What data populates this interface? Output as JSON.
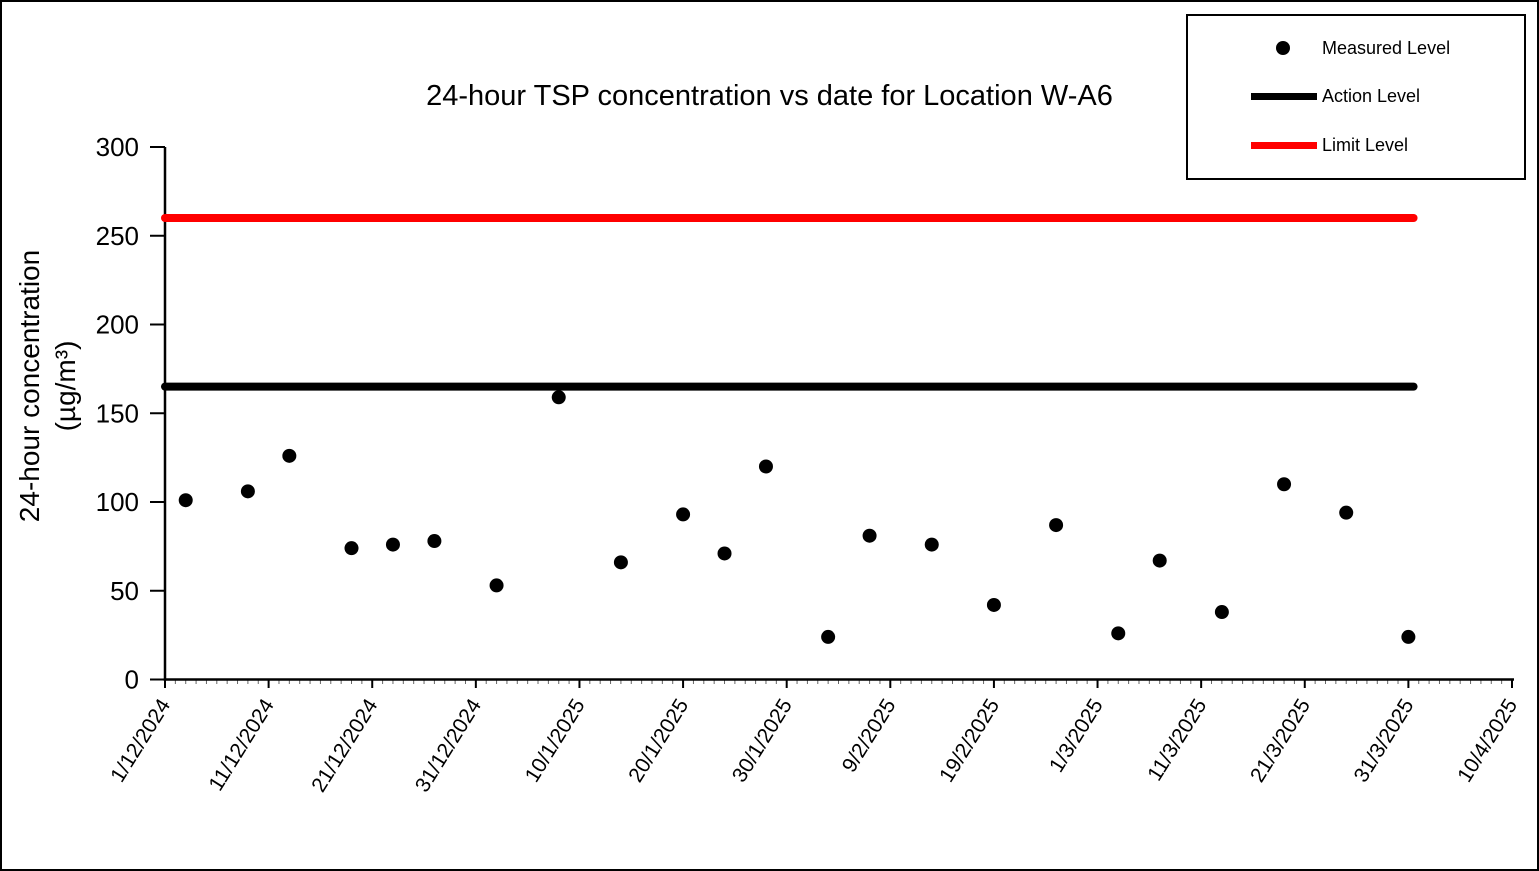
{
  "figure": {
    "title": "24-hour TSP concentration vs date for Location W-A6"
  },
  "legend": {
    "position": "top-right",
    "items": [
      {
        "label": "Measured Level",
        "marker": "dot",
        "color": "#000000"
      },
      {
        "label": "Action Level",
        "marker": "line",
        "color": "#000000"
      },
      {
        "label": "Limit Level",
        "marker": "line",
        "color": "#ff0000"
      }
    ]
  },
  "chart_data": {
    "type": "scatter",
    "title": "24-hour TSP concentration vs date for Location W-A6",
    "xlabel": "",
    "ylabel_line1": "24-hour concentration",
    "ylabel_line2": "(µg/m³)",
    "ylim": [
      0,
      300
    ],
    "y_ticks": [
      0,
      50,
      100,
      150,
      200,
      250,
      300
    ],
    "x_tick_labels": [
      "1/12/2024",
      "11/12/2024",
      "21/12/2024",
      "31/12/2024",
      "10/1/2025",
      "20/1/2025",
      "30/1/2025",
      "9/2/2025",
      "19/2/2025",
      "1/3/2025",
      "11/3/2025",
      "21/3/2025",
      "31/3/2025",
      "10/4/2025"
    ],
    "grid": false,
    "legend_position": "top-right",
    "series": [
      {
        "name": "Measured Level",
        "type": "scatter",
        "color": "#000000",
        "points": [
          {
            "date": "3/12/2024",
            "value": 101
          },
          {
            "date": "9/12/2024",
            "value": 106
          },
          {
            "date": "13/12/2024",
            "value": 126
          },
          {
            "date": "19/12/2024",
            "value": 74
          },
          {
            "date": "23/12/2024",
            "value": 76
          },
          {
            "date": "27/12/2024",
            "value": 78
          },
          {
            "date": "2/1/2025",
            "value": 53
          },
          {
            "date": "8/1/2025",
            "value": 159
          },
          {
            "date": "14/1/2025",
            "value": 66
          },
          {
            "date": "20/1/2025",
            "value": 93
          },
          {
            "date": "24/1/2025",
            "value": 71
          },
          {
            "date": "28/1/2025",
            "value": 120
          },
          {
            "date": "3/2/2025",
            "value": 24
          },
          {
            "date": "7/2/2025",
            "value": 81
          },
          {
            "date": "13/2/2025",
            "value": 76
          },
          {
            "date": "19/2/2025",
            "value": 42
          },
          {
            "date": "25/2/2025",
            "value": 87
          },
          {
            "date": "3/3/2025",
            "value": 26
          },
          {
            "date": "7/3/2025",
            "value": 67
          },
          {
            "date": "13/3/2025",
            "value": 38
          },
          {
            "date": "19/3/2025",
            "value": 110
          },
          {
            "date": "25/3/2025",
            "value": 94
          },
          {
            "date": "31/3/2025",
            "value": 24
          }
        ]
      },
      {
        "name": "Action Level",
        "type": "hline",
        "color": "#000000",
        "value": 165
      },
      {
        "name": "Limit Level",
        "type": "hline",
        "color": "#ff0000",
        "value": 260
      }
    ]
  }
}
